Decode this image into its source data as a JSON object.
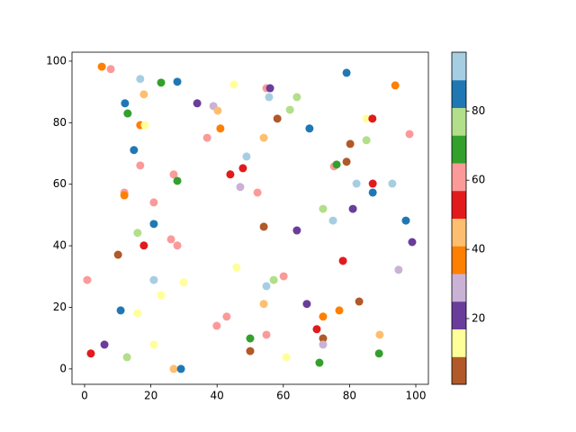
{
  "chart_data": {
    "type": "scatter",
    "x": [
      5.2,
      7.9,
      16.8,
      23.1,
      28,
      79.1,
      93.8,
      45.1,
      17.9,
      54.9,
      56,
      55.7,
      64.1,
      12.2,
      34,
      38.9,
      40.2,
      13,
      62,
      58.2,
      85.1,
      86.9,
      16.8,
      18.2,
      41,
      67.9,
      98.1,
      37,
      54.1,
      85.1,
      80.2,
      14.9,
      48.9,
      79.1,
      75.3,
      76.1,
      16.8,
      26.9,
      44,
      47.8,
      28,
      82.1,
      87,
      92.9,
      47,
      52.2,
      87,
      12,
      12,
      20.9,
      72,
      81,
      75,
      20.9,
      97,
      54.1,
      64.1,
      16,
      26.1,
      28,
      17.9,
      98.9,
      10.1,
      78,
      45.9,
      94.8,
      0.8,
      20.9,
      29.9,
      57.1,
      60.1,
      54.9,
      23.1,
      67.1,
      82.9,
      54.1,
      10.9,
      16,
      76.9,
      72,
      42.9,
      39.9,
      70.1,
      89.1,
      54.9,
      50,
      72,
      72,
      6,
      20.9,
      50,
      1.9,
      12.8,
      60.9,
      88.9,
      70.9,
      26.9,
      29.1
    ],
    "y": [
      98.2,
      97.4,
      94.2,
      93,
      93.3,
      96.2,
      92.1,
      92.4,
      89.2,
      91.2,
      91.2,
      88.3,
      88.3,
      86.3,
      86.3,
      85.4,
      83.9,
      83,
      84.2,
      81.3,
      81.3,
      81.3,
      79.2,
      79.2,
      78.1,
      78.1,
      76.3,
      75.1,
      75.1,
      74.3,
      73.1,
      71.1,
      69,
      67.3,
      65.8,
      66.4,
      66.1,
      63.2,
      63.2,
      65.2,
      61.1,
      60.2,
      60.2,
      60.2,
      59.1,
      57.3,
      57.3,
      57.3,
      56.4,
      54.1,
      52,
      52,
      48.2,
      47.1,
      48.2,
      46.2,
      45,
      44.2,
      42.1,
      40.1,
      40.1,
      41.2,
      37.1,
      35.1,
      33,
      32.2,
      28.9,
      28.9,
      28.1,
      28.9,
      30.1,
      26.9,
      24,
      21.1,
      21.9,
      21.1,
      19,
      18.1,
      19,
      17,
      17,
      14,
      12.9,
      11.1,
      11.1,
      9.9,
      9.9,
      7.9,
      7.9,
      7.9,
      5.8,
      5,
      3.8,
      3.8,
      5,
      2,
      0,
      0
    ],
    "c": [
      37,
      61,
      93,
      69,
      85,
      85,
      37,
      13,
      45,
      61,
      21,
      93,
      77,
      85,
      21,
      29,
      45,
      69,
      77,
      5,
      13,
      53,
      37,
      13,
      37,
      85,
      61,
      61,
      45,
      77,
      5,
      85,
      93,
      5,
      61,
      69,
      61,
      61,
      53,
      53,
      69,
      93,
      53,
      93,
      29,
      61,
      85,
      61,
      37,
      61,
      77,
      21,
      93,
      85,
      85,
      5,
      21,
      77,
      61,
      61,
      53,
      21,
      5,
      53,
      13,
      29,
      61,
      93,
      13,
      77,
      61,
      93,
      13,
      21,
      5,
      45,
      85,
      13,
      37,
      37,
      61,
      61,
      53,
      45,
      61,
      69,
      5,
      29,
      21,
      13,
      5,
      53,
      77,
      13,
      69,
      69,
      45,
      85
    ],
    "colormap": [
      "#b15928",
      "#ffff99",
      "#6a3d9a",
      "#cab2d6",
      "#ff7f00",
      "#fdbf6f",
      "#e31a1c",
      "#fb9a99",
      "#33a02c",
      "#b2df8a",
      "#1f78b4",
      "#a6cee3"
    ],
    "clim": [
      1,
      97
    ],
    "cticks": [
      20,
      40,
      60,
      80
    ],
    "xlim": [
      -3.8,
      103.8
    ],
    "ylim": [
      -5,
      102.9
    ],
    "xticks": [
      0,
      20,
      40,
      60,
      80,
      100
    ],
    "yticks": [
      0,
      20,
      40,
      60,
      80,
      100
    ]
  }
}
